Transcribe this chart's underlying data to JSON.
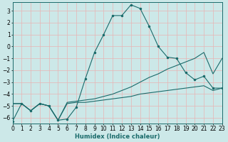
{
  "xlabel": "Humidex (Indice chaleur)",
  "xlim": [
    0,
    23
  ],
  "ylim": [
    -6.5,
    3.7
  ],
  "yticks": [
    -6,
    -5,
    -4,
    -3,
    -2,
    -1,
    0,
    1,
    2,
    3
  ],
  "xticks": [
    0,
    1,
    2,
    3,
    4,
    5,
    6,
    7,
    8,
    9,
    10,
    11,
    12,
    13,
    14,
    15,
    16,
    17,
    18,
    19,
    20,
    21,
    22,
    23
  ],
  "bg_color": "#cce8e8",
  "grid_color": "#e8b4b4",
  "line_color": "#1a6b6b",
  "line1_x": [
    0,
    1,
    2,
    3,
    4,
    5,
    6,
    7,
    8,
    9,
    10,
    11,
    12,
    13,
    14,
    15,
    16,
    17,
    18,
    19,
    20,
    21,
    22,
    23
  ],
  "line1_y": [
    -6.3,
    -4.8,
    -5.4,
    -4.8,
    -5.0,
    -6.2,
    -6.1,
    -5.1,
    -2.7,
    -0.5,
    1.0,
    2.6,
    2.6,
    3.5,
    3.2,
    1.7,
    0.0,
    -0.9,
    -1.0,
    -2.2,
    -2.8,
    -2.5,
    -3.5,
    -3.5
  ],
  "line2_x": [
    0,
    1,
    2,
    3,
    4,
    5,
    6,
    7,
    8,
    9,
    10,
    11,
    12,
    13,
    14,
    15,
    16,
    17,
    18,
    19,
    20,
    21,
    22,
    23
  ],
  "line2_y": [
    -4.8,
    -4.8,
    -5.4,
    -4.8,
    -5.0,
    -6.2,
    -4.7,
    -4.6,
    -4.5,
    -4.4,
    -4.2,
    -4.0,
    -3.7,
    -3.4,
    -3.0,
    -2.6,
    -2.3,
    -1.9,
    -1.6,
    -1.3,
    -1.0,
    -0.5,
    -2.3,
    -1.0
  ],
  "line3_x": [
    0,
    1,
    2,
    3,
    4,
    5,
    6,
    7,
    8,
    9,
    10,
    11,
    12,
    13,
    14,
    15,
    16,
    17,
    18,
    19,
    20,
    21,
    22,
    23
  ],
  "line3_y": [
    -4.8,
    -4.8,
    -5.4,
    -4.8,
    -5.0,
    -6.2,
    -4.8,
    -4.7,
    -4.7,
    -4.6,
    -4.5,
    -4.4,
    -4.3,
    -4.2,
    -4.0,
    -3.9,
    -3.8,
    -3.7,
    -3.6,
    -3.5,
    -3.4,
    -3.3,
    -3.7,
    -3.5
  ]
}
